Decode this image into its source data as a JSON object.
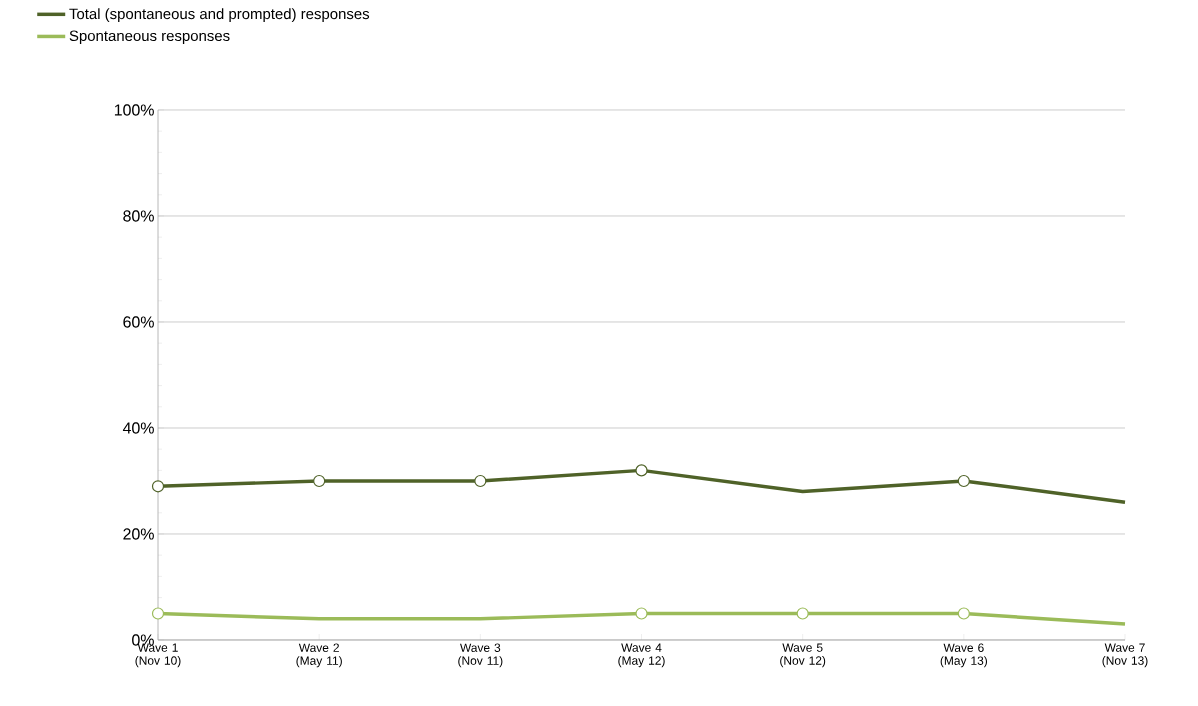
{
  "chart_data": {
    "type": "line",
    "categories": [
      "Wave 1 (Nov 10)",
      "Wave 2 (May 11)",
      "Wave 3 (Nov 11)",
      "Wave 4 (May 12)",
      "Wave 5 (Nov 12)",
      "Wave 6 (May 13)",
      "Wave 7 (Nov 13)"
    ],
    "series": [
      {
        "name": "Total (spontaneous and prompted) responses",
        "color": "#4f6228",
        "values": [
          29,
          30,
          30,
          32,
          28,
          30,
          26
        ]
      },
      {
        "name": "Spontaneous responses",
        "color": "#9bbb59",
        "values": [
          5,
          4,
          4,
          5,
          5,
          5,
          3
        ]
      },
      {
        "type": "scatter",
        "color": "#4f6228",
        "marker": "circle",
        "values": [
          29,
          30,
          30,
          32,
          null,
          30,
          null
        ]
      },
      {
        "type": "scatter",
        "color": "#9bbb59",
        "marker": "circle",
        "values": [
          5,
          null,
          null,
          5,
          5,
          5,
          null
        ]
      }
    ],
    "ylim": [
      0,
      100
    ],
    "yticks": [
      {
        "value": 0,
        "label": "0%"
      },
      {
        "value": 20,
        "label": "20%"
      },
      {
        "value": 40,
        "label": "40%"
      },
      {
        "value": 60,
        "label": "60%"
      },
      {
        "value": 80,
        "label": "80%"
      },
      {
        "value": 100,
        "label": "100%"
      }
    ],
    "grid": "y",
    "legend": "top left",
    "marker": "none",
    "line_style": "solid"
  }
}
